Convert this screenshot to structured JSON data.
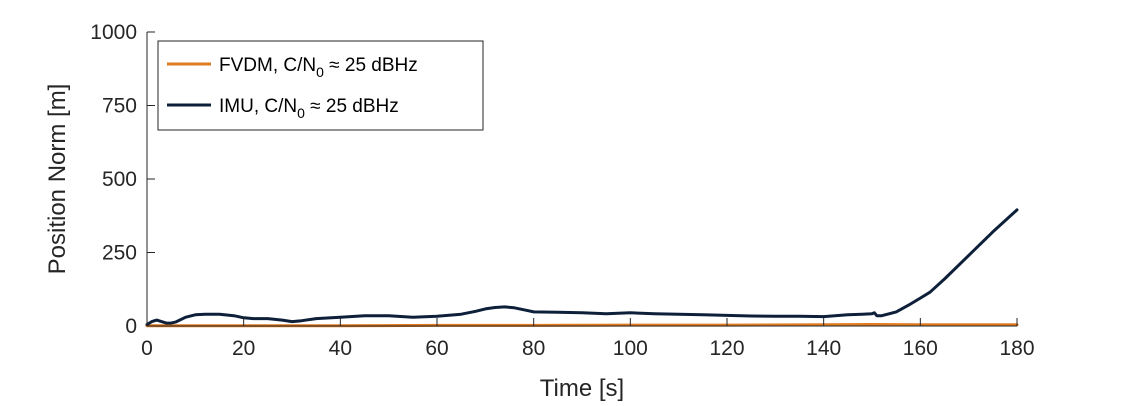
{
  "chart_data": {
    "type": "line",
    "title": "",
    "xlabel": "Time [s]",
    "ylabel": "Position Norm [m]",
    "xlim": [
      0,
      180
    ],
    "ylim": [
      0,
      1000
    ],
    "xticks": [
      0,
      20,
      40,
      60,
      80,
      100,
      120,
      140,
      160,
      180
    ],
    "yticks": [
      0,
      250,
      500,
      750,
      1000
    ],
    "grid": false,
    "legend_location": "top-left",
    "series": [
      {
        "name": "FVDM, C/N0 ≈ 25 dBHz",
        "legend_parts": [
          "FVDM, C/N",
          "0",
          " ≈ 25 dBHz"
        ],
        "color": "#e07b20",
        "x": [
          0,
          20,
          40,
          60,
          80,
          100,
          120,
          140,
          150,
          160,
          170,
          180
        ],
        "y": [
          1,
          1,
          1,
          2,
          2,
          3,
          3,
          4,
          5,
          4,
          4,
          4
        ]
      },
      {
        "name": "IMU, C/N0 ≈ 25 dBHz",
        "legend_parts": [
          "IMU, C/N",
          "0",
          " ≈ 25 dBHz"
        ],
        "color": "#0e2039",
        "x": [
          0,
          1,
          2,
          3,
          4,
          5,
          6,
          8,
          10,
          12,
          15,
          18,
          20,
          22,
          25,
          28,
          30,
          32,
          35,
          40,
          45,
          50,
          55,
          60,
          65,
          68,
          70,
          72,
          74,
          76,
          78,
          80,
          85,
          90,
          95,
          100,
          105,
          110,
          115,
          120,
          125,
          130,
          135,
          140,
          145,
          148,
          150,
          150.5,
          151,
          152,
          155,
          158,
          160,
          162,
          165,
          170,
          175,
          180
        ],
        "y": [
          5,
          15,
          20,
          15,
          10,
          10,
          14,
          30,
          38,
          40,
          40,
          35,
          28,
          25,
          25,
          20,
          15,
          18,
          25,
          30,
          35,
          35,
          30,
          33,
          40,
          50,
          58,
          63,
          65,
          62,
          55,
          48,
          47,
          45,
          42,
          45,
          42,
          40,
          38,
          36,
          34,
          33,
          33,
          32,
          38,
          40,
          42,
          45,
          35,
          35,
          48,
          75,
          95,
          115,
          160,
          240,
          320,
          395
        ]
      }
    ]
  }
}
